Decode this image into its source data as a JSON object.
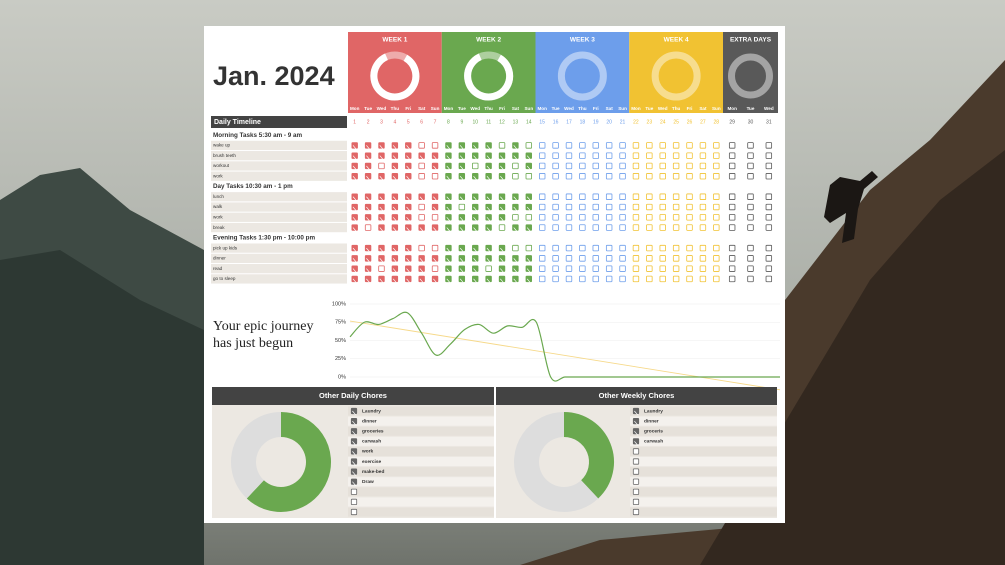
{
  "title": "Jan. 2024",
  "weeks": [
    {
      "label": "WEEK 1",
      "color": "#e06666"
    },
    {
      "label": "WEEK 2",
      "color": "#6aa84f"
    },
    {
      "label": "WEEK 3",
      "color": "#6d9eeb"
    },
    {
      "label": "WEEK 4",
      "color": "#f1c232"
    },
    {
      "label": "EXTRA DAYS",
      "color": "#595959"
    }
  ],
  "day_names": [
    "Mon",
    "Tue",
    "Wed",
    "Thu",
    "Fri",
    "Sat",
    "Sun",
    "Mon",
    "Tue",
    "Wed",
    "Thu",
    "Fri",
    "Sat",
    "Sun",
    "Mon",
    "Tue",
    "Wed",
    "Thu",
    "Fri",
    "Sat",
    "Sun",
    "Mon",
    "Tue",
    "Wed",
    "Thu",
    "Fri",
    "Sat",
    "Sun",
    "Mon",
    "Tue",
    "Wed"
  ],
  "days": [
    1,
    2,
    3,
    4,
    5,
    6,
    7,
    8,
    9,
    10,
    11,
    12,
    13,
    14,
    15,
    16,
    17,
    18,
    19,
    20,
    21,
    22,
    23,
    24,
    25,
    26,
    27,
    28,
    29,
    30,
    31
  ],
  "timeline_title": "Daily Timeline",
  "sections": [
    {
      "title": "Morning Tasks 5:30 am - 9 am",
      "tasks": [
        {
          "name": "wake up",
          "checks": [
            1,
            1,
            1,
            1,
            1,
            0,
            0,
            1,
            1,
            1,
            1,
            0,
            1,
            0,
            0,
            0,
            0,
            0,
            0,
            0,
            0,
            0,
            0,
            0,
            0,
            0,
            0,
            0,
            0,
            0,
            0
          ]
        },
        {
          "name": "brush teeth",
          "checks": [
            1,
            1,
            1,
            1,
            1,
            1,
            1,
            1,
            1,
            1,
            1,
            1,
            1,
            1,
            0,
            0,
            0,
            0,
            0,
            0,
            0,
            0,
            0,
            0,
            0,
            0,
            0,
            0,
            0,
            0,
            0
          ]
        },
        {
          "name": "workout",
          "checks": [
            1,
            1,
            0,
            1,
            1,
            0,
            1,
            1,
            1,
            0,
            1,
            1,
            0,
            1,
            0,
            0,
            0,
            0,
            0,
            0,
            0,
            0,
            0,
            0,
            0,
            0,
            0,
            0,
            0,
            0,
            0
          ]
        },
        {
          "name": "work",
          "checks": [
            1,
            1,
            1,
            1,
            1,
            0,
            0,
            1,
            1,
            1,
            1,
            1,
            0,
            0,
            0,
            0,
            0,
            0,
            0,
            0,
            0,
            0,
            0,
            0,
            0,
            0,
            0,
            0,
            0,
            0,
            0
          ]
        }
      ]
    },
    {
      "title": "Day Tasks 10:30 am - 1 pm",
      "tasks": [
        {
          "name": "lunch",
          "checks": [
            1,
            1,
            1,
            1,
            1,
            1,
            1,
            1,
            1,
            1,
            1,
            1,
            1,
            1,
            0,
            0,
            0,
            0,
            0,
            0,
            0,
            0,
            0,
            0,
            0,
            0,
            0,
            0,
            0,
            0,
            0
          ]
        },
        {
          "name": "walk",
          "checks": [
            1,
            1,
            1,
            1,
            1,
            0,
            1,
            1,
            0,
            1,
            1,
            1,
            1,
            1,
            0,
            0,
            0,
            0,
            0,
            0,
            0,
            0,
            0,
            0,
            0,
            0,
            0,
            0,
            0,
            0,
            0
          ]
        },
        {
          "name": "work",
          "checks": [
            1,
            1,
            1,
            1,
            1,
            0,
            0,
            1,
            1,
            1,
            1,
            1,
            0,
            0,
            0,
            0,
            0,
            0,
            0,
            0,
            0,
            0,
            0,
            0,
            0,
            0,
            0,
            0,
            0,
            0,
            0
          ]
        },
        {
          "name": "break",
          "checks": [
            1,
            0,
            1,
            1,
            1,
            1,
            1,
            1,
            1,
            1,
            1,
            0,
            1,
            1,
            0,
            0,
            0,
            0,
            0,
            0,
            0,
            0,
            0,
            0,
            0,
            0,
            0,
            0,
            0,
            0,
            0
          ]
        }
      ]
    },
    {
      "title": "Evening Tasks 1:30 pm - 10:00 pm",
      "tasks": [
        {
          "name": "pick up kids",
          "checks": [
            1,
            1,
            1,
            1,
            1,
            0,
            0,
            1,
            1,
            1,
            1,
            1,
            0,
            0,
            0,
            0,
            0,
            0,
            0,
            0,
            0,
            0,
            0,
            0,
            0,
            0,
            0,
            0,
            0,
            0,
            0
          ]
        },
        {
          "name": "dinner",
          "checks": [
            1,
            1,
            1,
            1,
            1,
            1,
            1,
            1,
            1,
            1,
            1,
            1,
            1,
            1,
            0,
            0,
            0,
            0,
            0,
            0,
            0,
            0,
            0,
            0,
            0,
            0,
            0,
            0,
            0,
            0,
            0
          ]
        },
        {
          "name": "read",
          "checks": [
            1,
            1,
            0,
            1,
            1,
            1,
            0,
            1,
            1,
            1,
            0,
            1,
            1,
            1,
            0,
            0,
            0,
            0,
            0,
            0,
            0,
            0,
            0,
            0,
            0,
            0,
            0,
            0,
            0,
            0,
            0
          ]
        },
        {
          "name": "go to sleep",
          "checks": [
            1,
            1,
            1,
            1,
            1,
            1,
            1,
            1,
            1,
            1,
            1,
            1,
            1,
            1,
            0,
            0,
            0,
            0,
            0,
            0,
            0,
            0,
            0,
            0,
            0,
            0,
            0,
            0,
            0,
            0,
            0
          ]
        }
      ]
    }
  ],
  "slogan": [
    "Your epic journey",
    "has just begun"
  ],
  "chart_data": [
    {
      "type": "line",
      "color": "#6aa84f",
      "trend_color": "#f6d98a",
      "values": [
        55,
        75,
        72,
        80,
        88,
        60,
        30,
        45,
        65,
        72,
        60,
        70,
        68,
        75,
        0,
        0,
        0,
        0,
        0,
        0,
        0,
        0,
        0,
        0,
        0,
        0,
        0,
        0,
        0,
        0,
        0
      ],
      "ylim": [
        0,
        100
      ],
      "yticks": [
        {
          "value": 0,
          "label": "0%"
        },
        {
          "value": 25,
          "label": "25%"
        },
        {
          "value": 50,
          "label": "50%"
        },
        {
          "value": 75,
          "label": "75%"
        },
        {
          "value": 100,
          "label": "100%"
        }
      ],
      "grid": true
    },
    {
      "type": "pie",
      "title": "Other Daily Chores",
      "values": [
        62,
        38
      ],
      "colors": [
        "#6aa84f",
        "#dddddd"
      ],
      "items": [
        "Laundry",
        "dinner",
        "groceries",
        "carwash",
        "work",
        "exercise",
        "make-bed",
        "Draw",
        null,
        null,
        null
      ],
      "checks": [
        1,
        1,
        1,
        1,
        1,
        1,
        1,
        1,
        0,
        0,
        0
      ]
    },
    {
      "type": "pie",
      "title": "Other Weekly Chores",
      "values": [
        38,
        62
      ],
      "colors": [
        "#6aa84f",
        "#dddddd"
      ],
      "items": [
        "Laundry",
        "dinner",
        "groceris",
        "carwash",
        null,
        null,
        null,
        null,
        null,
        null,
        null
      ],
      "checks": [
        1,
        1,
        1,
        1,
        0,
        0,
        0,
        0,
        0,
        0,
        0
      ]
    }
  ]
}
